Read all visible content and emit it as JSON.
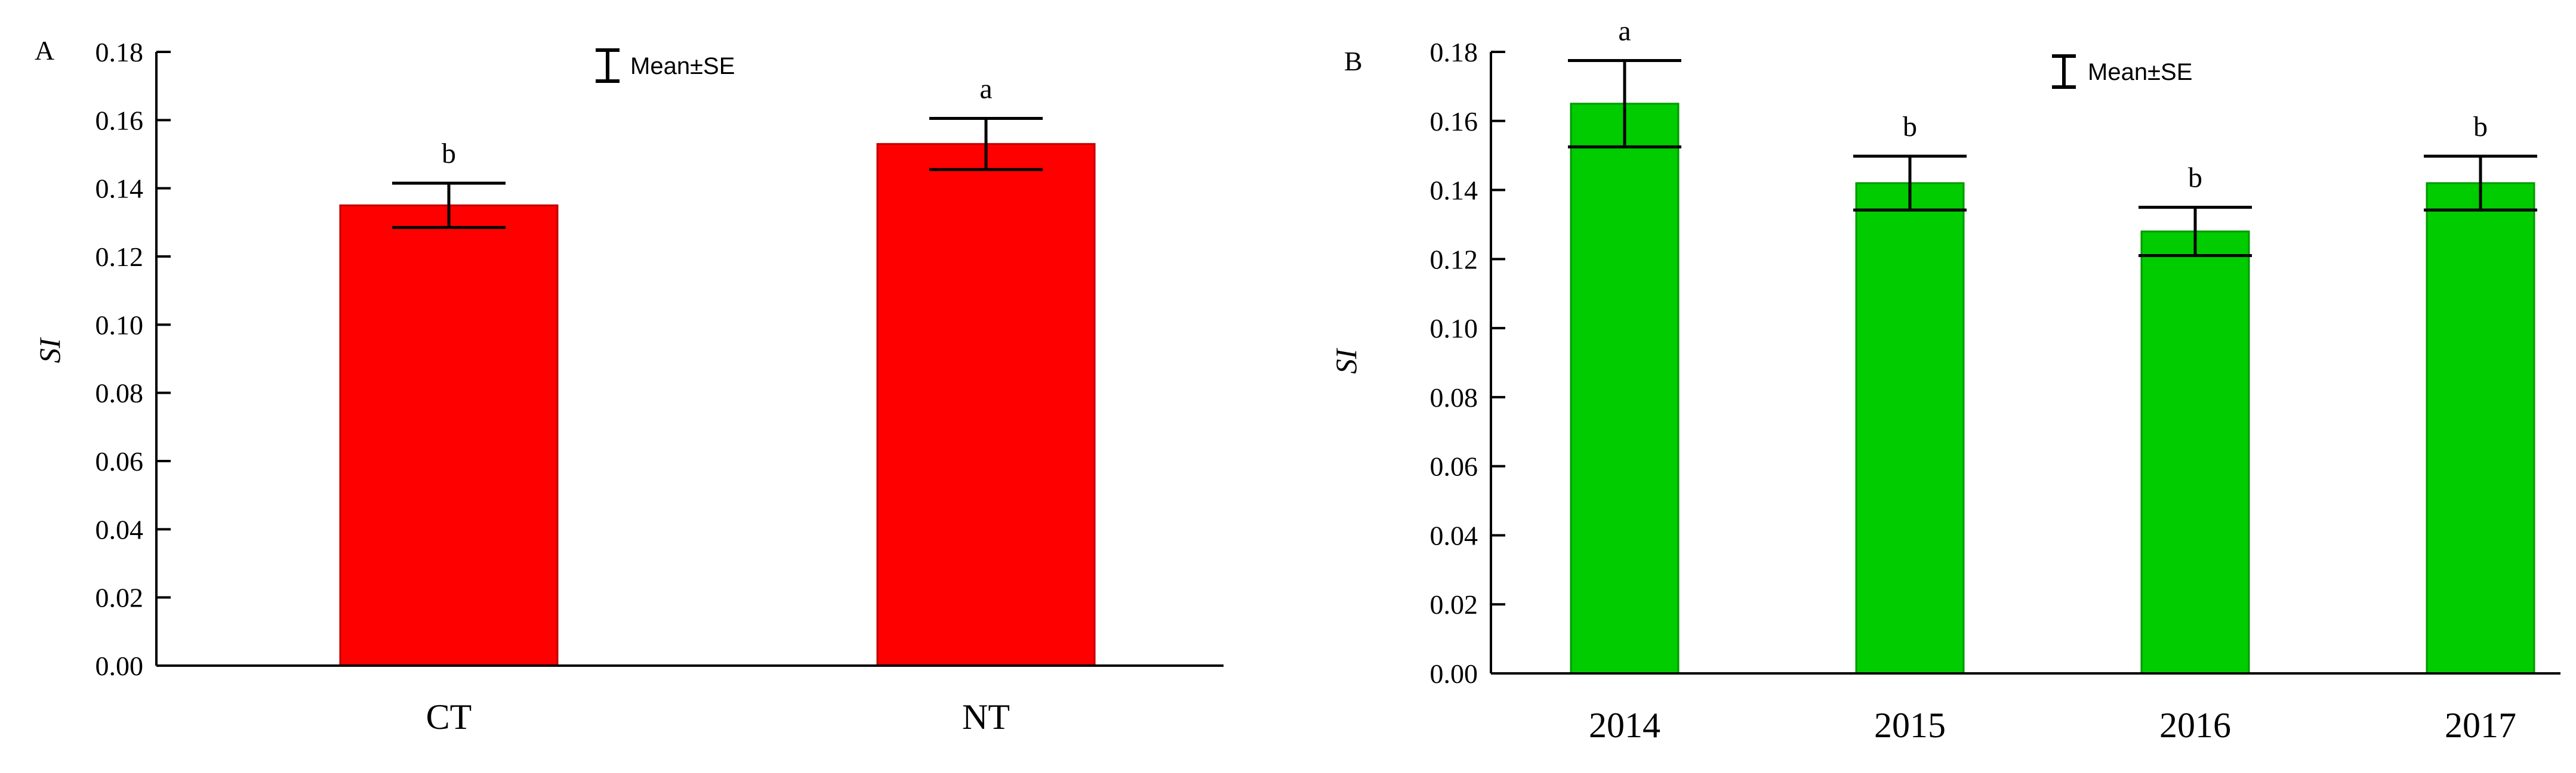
{
  "chart_data": [
    {
      "type": "bar",
      "panel_label": "A",
      "categories": [
        "CT",
        "NT"
      ],
      "values": [
        0.135,
        0.153
      ],
      "errors": [
        0.0065,
        0.0075
      ],
      "significance": [
        "b",
        "a"
      ],
      "ylabel": "SI",
      "xlabel": "",
      "ylim": [
        0,
        0.18
      ],
      "yticks": [
        "0.00",
        "0.02",
        "0.04",
        "0.06",
        "0.08",
        "0.10",
        "0.12",
        "0.14",
        "0.16",
        "0.18"
      ],
      "legend": "Mean±SE",
      "bar_color": "#ff0000",
      "bar_edge_color": "#c00000"
    },
    {
      "type": "bar",
      "panel_label": "B",
      "categories": [
        "2014",
        "2015",
        "2016",
        "2017"
      ],
      "values": [
        0.165,
        0.142,
        0.128,
        0.142
      ],
      "errors": [
        0.0125,
        0.0078,
        0.007,
        0.0078
      ],
      "significance": [
        "a",
        "b",
        "b",
        "b"
      ],
      "ylabel": "SI",
      "xlabel": "",
      "ylim": [
        0,
        0.18
      ],
      "yticks": [
        "0.00",
        "0.02",
        "0.04",
        "0.06",
        "0.08",
        "0.10",
        "0.12",
        "0.14",
        "0.16",
        "0.18"
      ],
      "legend": "Mean±SE",
      "bar_color": "#00cc00",
      "bar_edge_color": "#009900"
    }
  ]
}
